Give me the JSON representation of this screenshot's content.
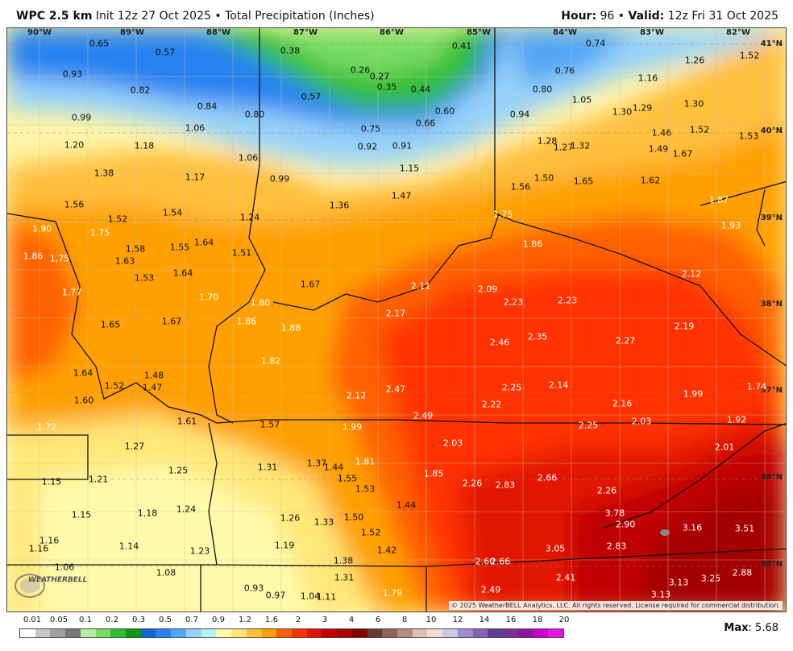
{
  "header": {
    "model": "WPC 2.5 km",
    "init": "Init 12z 27 Oct 2025",
    "product": "Total Precipitation (Inches)",
    "hour_label": "Hour:",
    "hour": "96",
    "valid_label": "Valid:",
    "valid": "12z Fri 31 Oct 2025"
  },
  "lon_labels": [
    "90°W",
    "89°W",
    "88°W",
    "87°W",
    "86°W",
    "85°W",
    "84°W",
    "83°W",
    "82°W"
  ],
  "lat_labels": [
    "41°N",
    "40°N",
    "39°N",
    "38°N",
    "37°N",
    "36°N",
    "35°N"
  ],
  "values": [
    "0.65",
    "0.57",
    "0.38",
    "0.41",
    "0.74",
    "1.26",
    "1.52",
    "0.93",
    "0.82",
    "0.26",
    "0.27",
    "0.35",
    "0.44",
    "0.80",
    "0.76",
    "1.16",
    "0.84",
    "0.80",
    "0.57",
    "0.60",
    "0.94",
    "1.05",
    "1.30",
    "1.29",
    "1.30",
    "0.99",
    "1.06",
    "0.75",
    "0.66",
    "1.28",
    "1.27",
    "1.32",
    "1.46",
    "1.52",
    "1.53",
    "1.20",
    "1.18",
    "0.92",
    "0.91",
    "1.49",
    "1.67",
    "1.06",
    "1.15",
    "1.38",
    "1.17",
    "0.99",
    "1.50",
    "1.56",
    "1.65",
    "1.62",
    "1.47",
    "1.56",
    "1.36",
    "1.52",
    "1.54",
    "1.24",
    "1.87",
    "1.75",
    "1.90",
    "1.75",
    "1.93",
    "1.58",
    "1.64",
    "1.55",
    "1.86",
    "1.86",
    "1.75",
    "1.63",
    "1.51",
    "1.53",
    "1.64",
    "2.12",
    "1.67",
    "2.11",
    "2.09",
    "1.77",
    "1.70",
    "2.23",
    "2.23",
    "1.80",
    "2.17",
    "1.65",
    "1.67",
    "1.86",
    "1.88",
    "2.19",
    "2.46",
    "2.35",
    "2.27",
    "1.82",
    "1.64",
    "1.48",
    "1.52",
    "1.47",
    "2.25",
    "2.14",
    "2.47",
    "1.74",
    "2.12",
    "1.99",
    "1.60",
    "2.16",
    "2.22",
    "1.61",
    "2.49",
    "2.03",
    "1.92",
    "1.72",
    "1.57",
    "1.99",
    "2.25",
    "2.03",
    "2.01",
    "1.27",
    "1.81",
    "1.37",
    "1.44",
    "1.85",
    "1.31",
    "1.25",
    "2.26",
    "2.83",
    "2.66",
    "2.26",
    "1.15",
    "1.21",
    "1.55",
    "1.53",
    "1.44",
    "1.18",
    "1.24",
    "1.15",
    "3.78",
    "1.26",
    "1.33",
    "1.50",
    "2.90",
    "3.16",
    "3.51",
    "1.16",
    "1.52",
    "1.14",
    "1.19",
    "1.16",
    "1.23",
    "3.05",
    "2.83",
    "1.42",
    "1.38",
    "2.60",
    "2.66",
    "1.06",
    "1.08",
    "2.41",
    "1.31",
    "2.88",
    "3.25",
    "3.13",
    "0.93",
    "0.97",
    "1.04",
    "1.11",
    "1.79",
    "2.49",
    "3.13"
  ],
  "copyright": "© 2025 WeatherBELL Analytics, LLC. All rights reserved. License required for commercial distribution.",
  "logo_text": "WEATHERBELL",
  "legend": {
    "labels": [
      "0.01",
      "0.05",
      "0.1",
      "0.2",
      "0.3",
      "0.5",
      "0.7",
      "0.9",
      "1.2",
      "1.6",
      "2",
      "3",
      "4",
      "6",
      "8",
      "10",
      "12",
      "14",
      "16",
      "18",
      "20"
    ],
    "colors": [
      "#ffffff",
      "#c8c8c8",
      "#a0a0a0",
      "#787878",
      "#b4f0a0",
      "#78dc64",
      "#32be32",
      "#109610",
      "#1464d2",
      "#2882f0",
      "#50a5f5",
      "#96d2fa",
      "#b4f0fa",
      "#fffaaa",
      "#ffe878",
      "#ffc03c",
      "#ffa000",
      "#ff6000",
      "#ff3200",
      "#e11400",
      "#c00000",
      "#a50000",
      "#870000",
      "#643b32",
      "#8c645a",
      "#b48c82",
      "#e1beb4",
      "#f0dcd2",
      "#cdc8e6",
      "#a08cc8",
      "#8264b4",
      "#643c96",
      "#783296",
      "#8c14a0",
      "#c800c8",
      "#e614e6"
    ],
    "max_label": "Max",
    "max": "5.68"
  }
}
